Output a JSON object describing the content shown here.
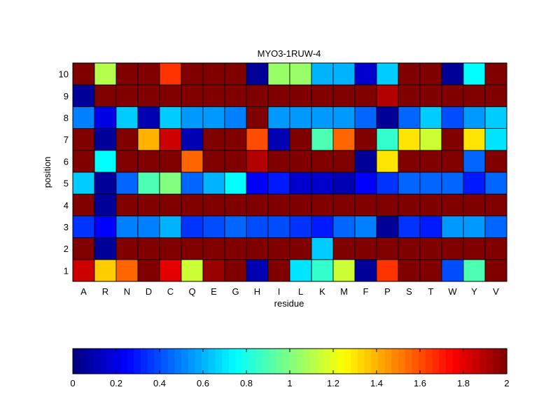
{
  "chart_data": {
    "type": "heatmap",
    "title": "MYO3-1RUW-4",
    "xlabel": "residue",
    "ylabel": "position",
    "x_categories": [
      "A",
      "R",
      "N",
      "D",
      "C",
      "Q",
      "E",
      "G",
      "H",
      "I",
      "L",
      "K",
      "M",
      "F",
      "P",
      "S",
      "T",
      "W",
      "Y",
      "V"
    ],
    "y_categories": [
      "1",
      "2",
      "3",
      "4",
      "5",
      "6",
      "7",
      "8",
      "9",
      "10"
    ],
    "values": [
      [
        1.85,
        1.35,
        1.55,
        2.0,
        1.8,
        1.15,
        1.95,
        2.0,
        0.1,
        2.0,
        0.7,
        0.85,
        1.15,
        0.05,
        1.65,
        2.0,
        2.0,
        0.4,
        0.9,
        2.0
      ],
      [
        2.0,
        0.05,
        2.0,
        2.0,
        2.0,
        2.0,
        2.0,
        2.0,
        2.0,
        2.0,
        2.0,
        0.65,
        2.0,
        2.0,
        2.0,
        2.0,
        2.0,
        2.0,
        2.0,
        2.0
      ],
      [
        0.35,
        0.25,
        0.5,
        0.5,
        0.6,
        0.35,
        0.4,
        0.45,
        0.4,
        0.4,
        0.35,
        0.3,
        0.45,
        0.5,
        0.05,
        0.35,
        0.3,
        0.55,
        0.55,
        0.45
      ],
      [
        2.0,
        0.05,
        2.0,
        2.0,
        2.0,
        2.0,
        2.0,
        2.0,
        2.0,
        2.0,
        2.0,
        2.0,
        2.0,
        2.0,
        2.0,
        2.0,
        2.0,
        2.0,
        2.0,
        2.0
      ],
      [
        0.65,
        0.05,
        0.45,
        0.9,
        1.0,
        0.45,
        0.6,
        0.75,
        0.25,
        0.3,
        0.15,
        0.15,
        0.1,
        0.25,
        0.35,
        0.45,
        0.45,
        0.45,
        0.3,
        0.45
      ],
      [
        2.0,
        0.75,
        2.0,
        2.0,
        2.0,
        1.55,
        2.0,
        2.0,
        1.9,
        2.0,
        2.0,
        2.0,
        2.0,
        0.05,
        1.3,
        2.0,
        2.0,
        2.0,
        0.45,
        2.0
      ],
      [
        2.0,
        0.05,
        2.0,
        1.4,
        1.85,
        0.1,
        2.0,
        2.0,
        1.6,
        0.1,
        2.0,
        0.9,
        1.55,
        2.0,
        0.85,
        1.3,
        1.15,
        2.0,
        1.3,
        0.7
      ],
      [
        0.5,
        0.2,
        0.65,
        0.1,
        0.65,
        0.55,
        0.55,
        0.5,
        2.0,
        0.55,
        0.55,
        0.55,
        0.55,
        0.45,
        0.05,
        0.45,
        0.65,
        0.4,
        0.55,
        0.65
      ],
      [
        0.05,
        2.0,
        2.0,
        2.0,
        2.0,
        2.0,
        2.0,
        2.0,
        2.0,
        2.0,
        2.0,
        2.0,
        2.0,
        2.0,
        1.9,
        2.0,
        2.0,
        2.0,
        2.0,
        2.0
      ],
      [
        2.0,
        1.1,
        2.0,
        2.0,
        1.65,
        2.0,
        2.0,
        2.0,
        0.05,
        1.05,
        1.05,
        0.6,
        0.6,
        0.15,
        0.65,
        2.0,
        2.0,
        0.05,
        0.75,
        2.0
      ]
    ],
    "value_range": [
      0,
      2
    ],
    "colormap": "jet",
    "colorbar": {
      "orientation": "horizontal",
      "location": "bottom",
      "ticks": [
        "0",
        "0.2",
        "0.4",
        "0.6",
        "0.8",
        "1",
        "1.2",
        "1.4",
        "1.6",
        "1.8",
        "2"
      ]
    }
  }
}
